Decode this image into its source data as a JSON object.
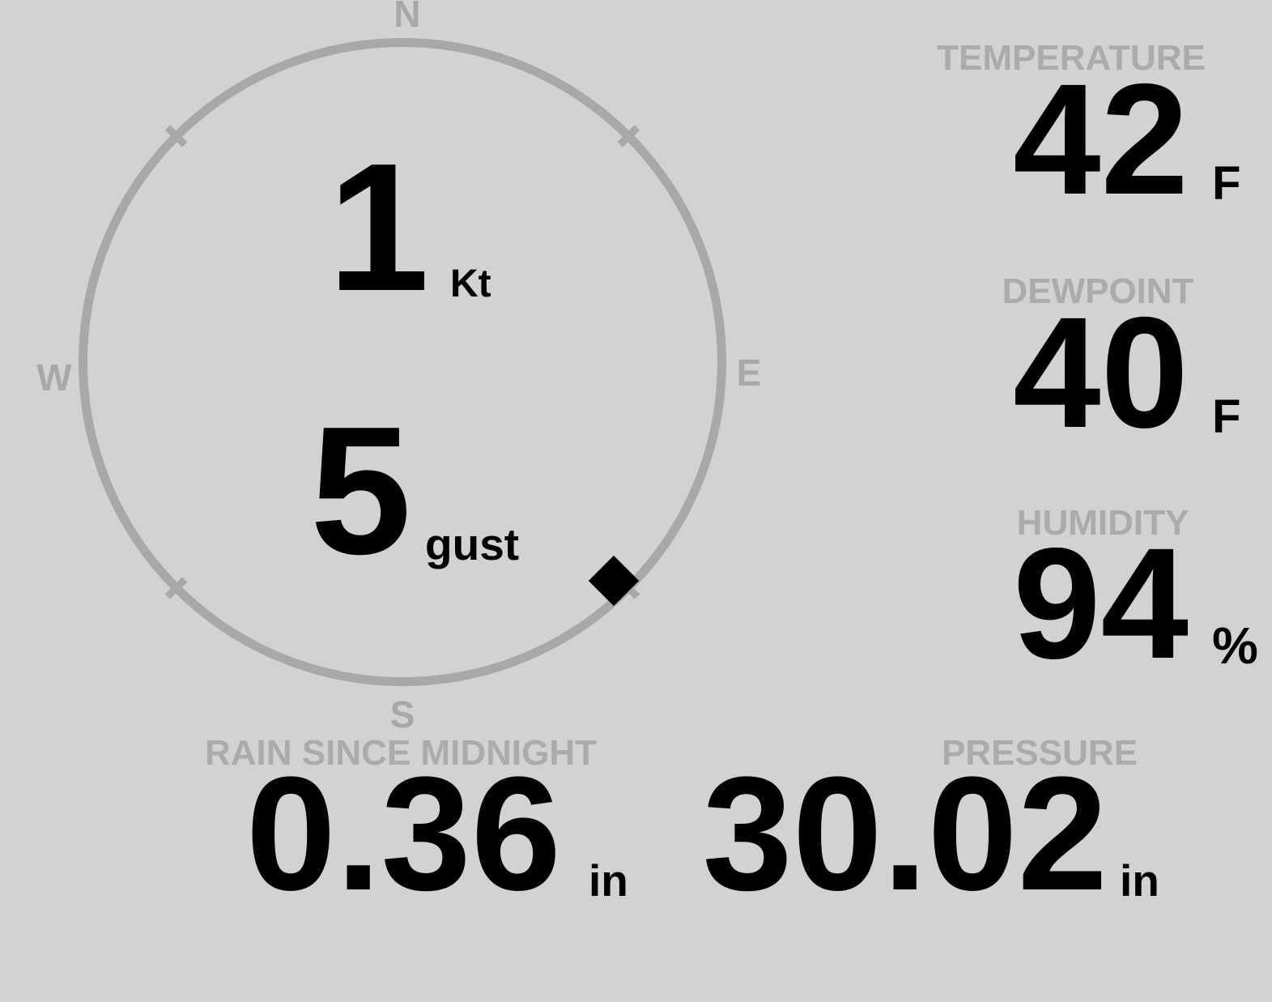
{
  "colors": {
    "background": "#d2d2d2",
    "muted_gray": "#a9a9a9",
    "value_black": "#000000"
  },
  "compass": {
    "cardinals": {
      "north": "N",
      "east": "E",
      "south": "S",
      "west": "W"
    },
    "wind_speed": {
      "value": "1",
      "unit": "Kt"
    },
    "wind_gust": {
      "value": "5",
      "unit": "gust"
    },
    "direction_marker": {
      "shape": "diamond",
      "bearing": "SE",
      "bearing_deg": 135
    }
  },
  "metrics": {
    "temperature": {
      "label": "TEMPERATURE",
      "value": "42",
      "unit": "F"
    },
    "dewpoint": {
      "label": "DEWPOINT",
      "value": "40",
      "unit": "F"
    },
    "humidity": {
      "label": "HUMIDITY",
      "value": "94",
      "unit": "%"
    },
    "rain_since_midnight": {
      "label": "RAIN SINCE MIDNIGHT",
      "value": "0.36",
      "unit": "in"
    },
    "pressure": {
      "label": "PRESSURE",
      "value": "30.02",
      "unit": "in"
    }
  }
}
